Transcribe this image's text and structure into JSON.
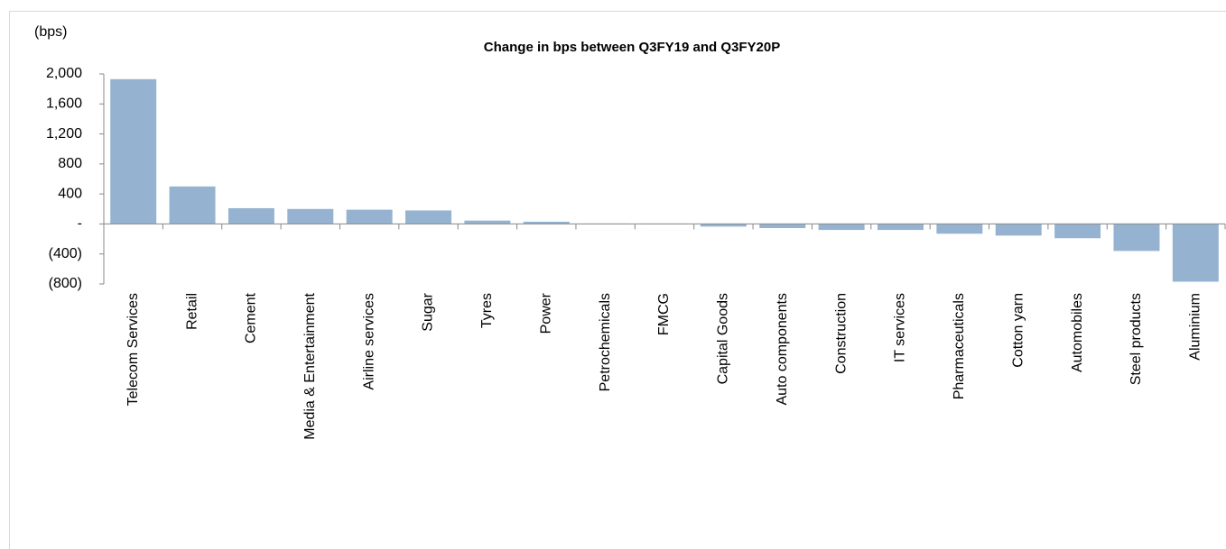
{
  "chart_data": {
    "type": "bar",
    "title": "Change in bps between Q3FY19 and Q3FY20P",
    "y_label": "(bps)",
    "categories": [
      "Telecom Services",
      "Retail",
      "Cement",
      "Media & Entertainment",
      "Airline services",
      "Sugar",
      "Tyres",
      "Power",
      "Petrochemicals",
      "FMCG",
      "Capital Goods",
      "Auto components",
      "Construction",
      "IT services",
      "Pharmaceuticals",
      "Cotton yarn",
      "Automobiles",
      "Steel products",
      "Aluminium"
    ],
    "values": [
      1930,
      500,
      210,
      200,
      190,
      180,
      45,
      30,
      -5,
      -5,
      -35,
      -55,
      -80,
      -80,
      -130,
      -155,
      -190,
      -360,
      -770
    ],
    "color": "#95b3d0",
    "ylim": [
      -800,
      2000
    ],
    "yticks": [
      {
        "value": -800,
        "label": "(800)"
      },
      {
        "value": -400,
        "label": "(400)"
      },
      {
        "value": 0,
        "label": "-"
      },
      400,
      800,
      {
        "value": 1200,
        "label": "1,200"
      },
      {
        "value": 1600,
        "label": "1,600"
      },
      {
        "value": 2000,
        "label": "2,000"
      }
    ],
    "grid": false
  }
}
